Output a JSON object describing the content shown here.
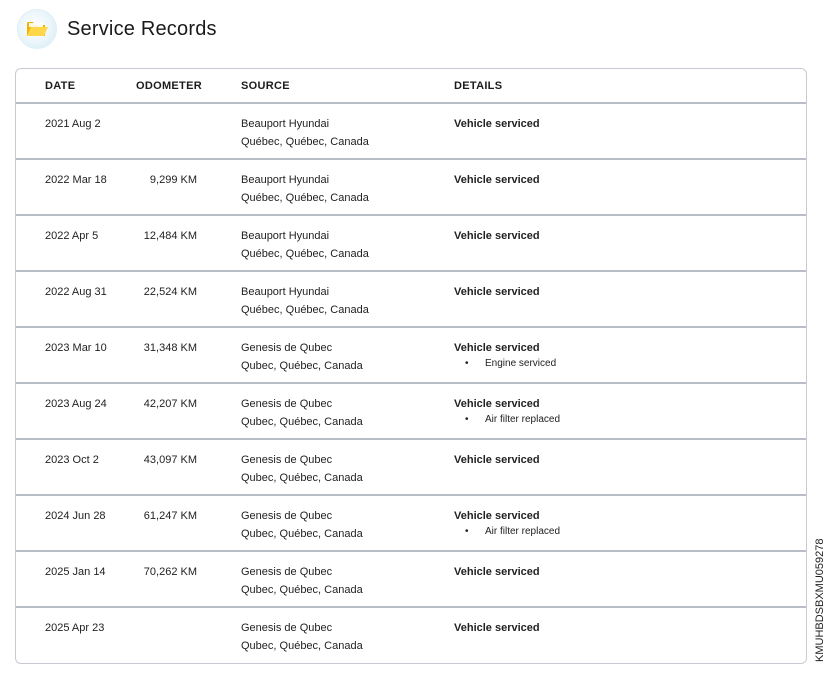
{
  "header": {
    "title": "Service Records",
    "icon": "folder-icon",
    "icon_color": "#f5c518"
  },
  "table": {
    "columns": [
      "DATE",
      "ODOMETER",
      "SOURCE",
      "DETAILS"
    ],
    "rows": [
      {
        "date": "2021 Aug 2",
        "odometer": "",
        "source_name": "Beauport Hyundai",
        "source_location": "Québec, Québec, Canada",
        "detail": "Vehicle serviced",
        "bullet": ""
      },
      {
        "date": "2022 Mar 18",
        "odometer": "9,299 KM",
        "source_name": "Beauport Hyundai",
        "source_location": "Québec, Québec, Canada",
        "detail": "Vehicle serviced",
        "bullet": ""
      },
      {
        "date": "2022 Apr 5",
        "odometer": "12,484 KM",
        "source_name": "Beauport Hyundai",
        "source_location": "Québec, Québec, Canada",
        "detail": "Vehicle serviced",
        "bullet": ""
      },
      {
        "date": "2022 Aug 31",
        "odometer": "22,524 KM",
        "source_name": "Beauport Hyundai",
        "source_location": "Québec, Québec, Canada",
        "detail": "Vehicle serviced",
        "bullet": ""
      },
      {
        "date": "2023 Mar 10",
        "odometer": "31,348 KM",
        "source_name": "Genesis de Qubec",
        "source_location": "Qubec, Québec, Canada",
        "detail": "Vehicle serviced",
        "bullet": "Engine serviced"
      },
      {
        "date": "2023 Aug 24",
        "odometer": "42,207 KM",
        "source_name": "Genesis de Qubec",
        "source_location": "Qubec, Québec, Canada",
        "detail": "Vehicle serviced",
        "bullet": "Air filter replaced"
      },
      {
        "date": "2023 Oct 2",
        "odometer": "43,097 KM",
        "source_name": "Genesis de Qubec",
        "source_location": "Qubec, Québec, Canada",
        "detail": "Vehicle serviced",
        "bullet": ""
      },
      {
        "date": "2024 Jun 28",
        "odometer": "61,247 KM",
        "source_name": "Genesis de Qubec",
        "source_location": "Qubec, Québec, Canada",
        "detail": "Vehicle serviced",
        "bullet": "Air filter replaced"
      },
      {
        "date": "2025 Jan 14",
        "odometer": "70,262 KM",
        "source_name": "Genesis de Qubec",
        "source_location": "Qubec, Québec, Canada",
        "detail": "Vehicle serviced",
        "bullet": ""
      },
      {
        "date": "2025 Apr 23",
        "odometer": "",
        "source_name": "Genesis de Qubec",
        "source_location": "Qubec, Québec, Canada",
        "detail": "Vehicle serviced",
        "bullet": ""
      }
    ]
  },
  "vin": "KMUHBDSBXMU059278"
}
